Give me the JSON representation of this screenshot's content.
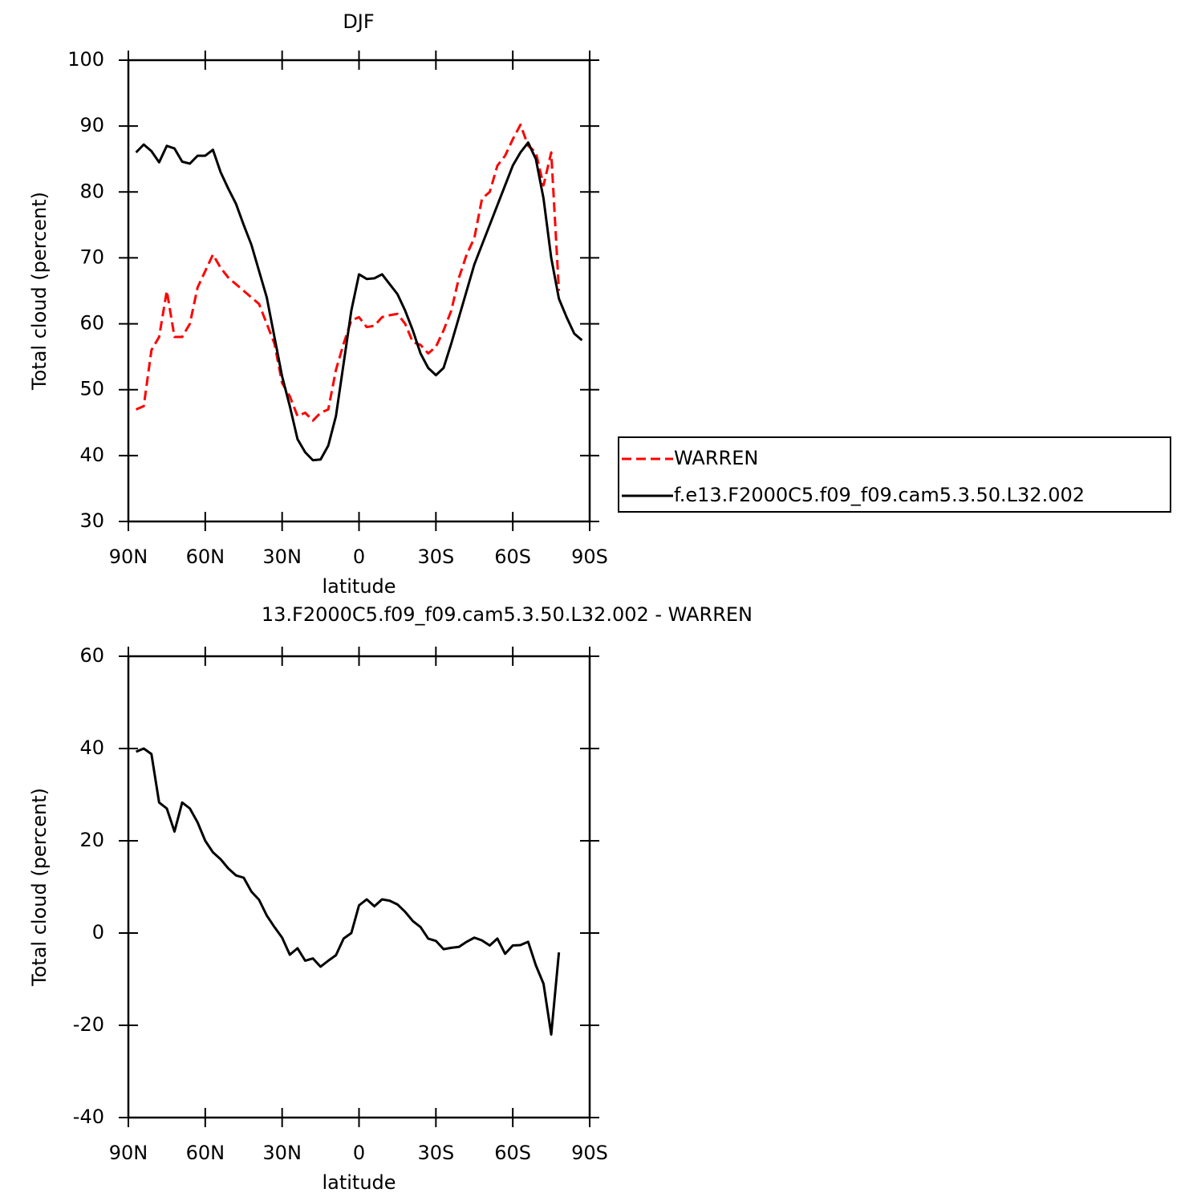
{
  "chart_data": [
    {
      "type": "line",
      "title": "DJF",
      "xlabel": "latitude",
      "ylabel": "Total cloud (percent)",
      "x": [
        87,
        84,
        81,
        78,
        75,
        72,
        69,
        66,
        63,
        60,
        57,
        54,
        51,
        48,
        45,
        42,
        39,
        36,
        33,
        30,
        27,
        24,
        21,
        18,
        15,
        12,
        9,
        6,
        3,
        0,
        -3,
        -6,
        -9,
        -12,
        -15,
        -18,
        -21,
        -24,
        -27,
        -30,
        -33,
        -36,
        -39,
        -42,
        -45,
        -48,
        -51,
        -54,
        -57,
        -60,
        -63,
        -66,
        -69,
        -72,
        -75,
        -78,
        -81,
        -84,
        -87
      ],
      "xlim": [
        90,
        -90
      ],
      "xticks": [
        {
          "value": 90,
          "label": "90N"
        },
        {
          "value": 60,
          "label": "60N"
        },
        {
          "value": 30,
          "label": "30N"
        },
        0,
        {
          "value": -30,
          "label": "30S"
        },
        {
          "value": -60,
          "label": "60S"
        },
        {
          "value": -90,
          "label": "90S"
        }
      ],
      "ylim": [
        30,
        100
      ],
      "yticks": [
        30,
        40,
        50,
        60,
        70,
        80,
        90,
        100
      ],
      "legend": "right",
      "series": [
        {
          "name": "WARREN",
          "color": "#ff0000",
          "dashed": true,
          "values": [
            47,
            47.5,
            56,
            58,
            65,
            58,
            58,
            60,
            65.5,
            68,
            70.5,
            68.5,
            67,
            66,
            65,
            64,
            63,
            60,
            57,
            51,
            49,
            46,
            46.5,
            45.3,
            46.5,
            47,
            53,
            57,
            60.5,
            61,
            59.5,
            59.7,
            61,
            61.3,
            61.5,
            60,
            57.2,
            56.8,
            55.5,
            56.5,
            59,
            62,
            67,
            70.5,
            73,
            79,
            80,
            84,
            85.5,
            88,
            90.2,
            87,
            86,
            81,
            86,
            65,
            null,
            null,
            null
          ]
        },
        {
          "name": "f.e13.F2000C5.f09_f09.cam5.3.50.L32.002",
          "color": "#000000",
          "dashed": false,
          "values": [
            86,
            87.2,
            86.2,
            84.5,
            87,
            86.6,
            84.6,
            84.3,
            85.5,
            85.5,
            86.4,
            83,
            80.5,
            78.2,
            75,
            72,
            68,
            64,
            58,
            52,
            47.5,
            42.5,
            40.5,
            39.3,
            39.4,
            41.5,
            46,
            54,
            62,
            67.5,
            66.8,
            66.9,
            67.5,
            66,
            64.5,
            62,
            59,
            55.5,
            53.3,
            52.2,
            53.3,
            57,
            61,
            65,
            69,
            72,
            75,
            78,
            81,
            84,
            86,
            87.5,
            85,
            79,
            70,
            63.8,
            61,
            58.5,
            57.5
          ]
        }
      ]
    },
    {
      "type": "line",
      "title": "13.F2000C5.f09_f09.cam5.3.50.L32.002 - WARREN",
      "xlabel": "latitude",
      "ylabel": "Total cloud (percent)",
      "x": [
        87,
        84,
        81,
        78,
        75,
        72,
        69,
        66,
        63,
        60,
        57,
        54,
        51,
        48,
        45,
        42,
        39,
        36,
        33,
        30,
        27,
        24,
        21,
        18,
        15,
        12,
        9,
        6,
        3,
        0,
        -3,
        -6,
        -9,
        -12,
        -15,
        -18,
        -21,
        -24,
        -27,
        -30,
        -33,
        -36,
        -39,
        -42,
        -45,
        -48,
        -51,
        -54,
        -57,
        -60,
        -63,
        -66,
        -69,
        -72,
        -75,
        -78,
        -81,
        -84,
        -87
      ],
      "xlim": [
        90,
        -90
      ],
      "xticks": [
        {
          "value": 90,
          "label": "90N"
        },
        {
          "value": 60,
          "label": "60N"
        },
        {
          "value": 30,
          "label": "30N"
        },
        0,
        {
          "value": -30,
          "label": "30S"
        },
        {
          "value": -60,
          "label": "60S"
        },
        {
          "value": -90,
          "label": "90S"
        }
      ],
      "ylim": [
        -40,
        60
      ],
      "yticks": [
        -40,
        -20,
        0,
        20,
        40,
        60
      ],
      "color": "#000000",
      "values": [
        39.3,
        40,
        38.8,
        28.3,
        27,
        22,
        28.3,
        27,
        24,
        20,
        17.5,
        16,
        14,
        12.5,
        12,
        9,
        7.2,
        3.8,
        1.3,
        -1,
        -4.7,
        -3.3,
        -6,
        -5.5,
        -7.3,
        -6,
        -4.8,
        -1.2,
        0,
        6,
        7.3,
        5.8,
        7.3,
        7,
        6.2,
        4.6,
        2.6,
        1.3,
        -1.2,
        -1.7,
        -3.5,
        -3.2,
        -3,
        -1.9,
        -1,
        -1.6,
        -2.7,
        -1.2,
        -4.5,
        -2.7,
        -2.6,
        -1.9,
        -7,
        -11,
        -22,
        -4.2,
        null,
        null,
        null
      ]
    }
  ]
}
